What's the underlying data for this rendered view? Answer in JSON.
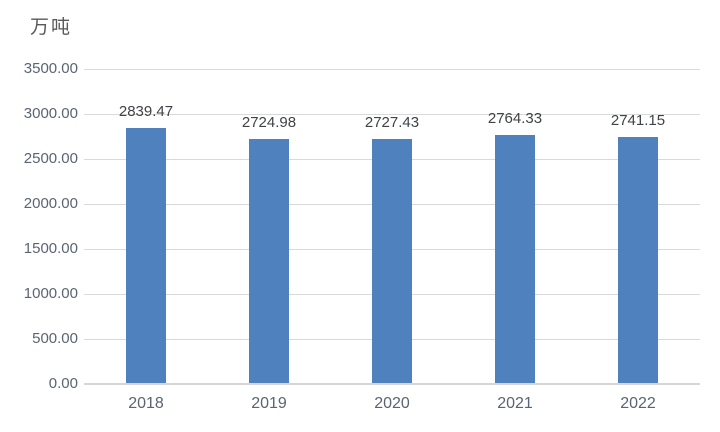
{
  "chart_data": {
    "type": "bar",
    "title": "",
    "ylabel": "万吨",
    "xlabel": "",
    "categories": [
      "2018",
      "2019",
      "2020",
      "2021",
      "2022"
    ],
    "values": [
      2839.47,
      2724.98,
      2727.43,
      2764.33,
      2741.15
    ],
    "value_labels": [
      "2839.47",
      "2724.98",
      "2727.43",
      "2764.33",
      "2741.15"
    ],
    "series_count": 1,
    "legend": "none",
    "grid": "horizontal",
    "ylim": [
      0,
      3500
    ],
    "y_ticks": [
      {
        "value": 3500,
        "label": "3500.00"
      },
      {
        "value": 3000,
        "label": "3000.00"
      },
      {
        "value": 2500,
        "label": "2500.00"
      },
      {
        "value": 2000,
        "label": "2000.00"
      },
      {
        "value": 1500,
        "label": "1500.00"
      },
      {
        "value": 1000,
        "label": "1000.00"
      },
      {
        "value": 500,
        "label": "500.00"
      },
      {
        "value": 0,
        "label": "0.00"
      }
    ],
    "colors": {
      "bar": "#4e81bd",
      "gridline": "#d9d9d9",
      "axis_line": "#d6d6d6",
      "axis_label": "#5a6472",
      "data_label": "#3f4347",
      "title": "#595959",
      "background": "#ffffff"
    }
  }
}
